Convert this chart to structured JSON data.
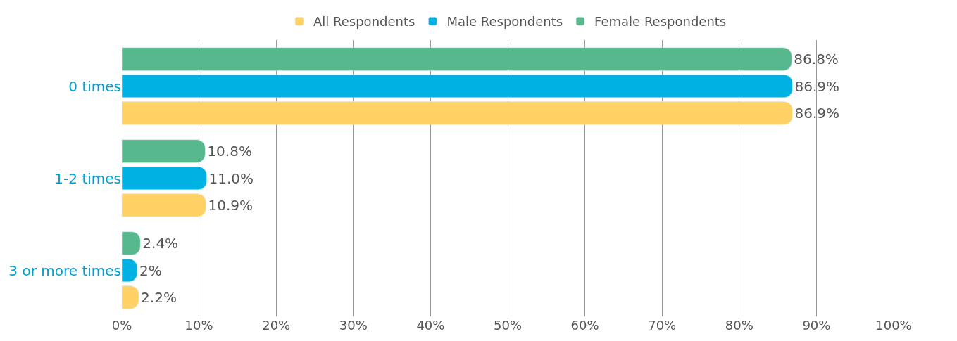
{
  "chart_data": {
    "type": "bar",
    "orientation": "horizontal",
    "categories": [
      "0 times",
      "1-2 times",
      "3 or more times"
    ],
    "series": [
      {
        "name": "All Respondents",
        "color": "#ffd265",
        "values": [
          86.9,
          10.9,
          2.2
        ],
        "value_labels": [
          "86.9%",
          "10.9%",
          "2.2%"
        ]
      },
      {
        "name": "Male Respondents",
        "color": "#00b2e3",
        "values": [
          86.9,
          11.0,
          2
        ],
        "value_labels": [
          "86.9%",
          "11.0%",
          "2%"
        ]
      },
      {
        "name": "Female Respondents",
        "color": "#56b88c",
        "values": [
          86.8,
          10.8,
          2.4
        ],
        "value_labels": [
          "86.8%",
          "10.8%",
          "2.4%"
        ]
      }
    ],
    "xlim": [
      0,
      100
    ],
    "xticks": [
      {
        "value": 0,
        "label": "0%"
      },
      {
        "value": 10,
        "label": "10%"
      },
      {
        "value": 20,
        "label": "20%"
      },
      {
        "value": 30,
        "label": "30%"
      },
      {
        "value": 40,
        "label": "40%"
      },
      {
        "value": 50,
        "label": "50%"
      },
      {
        "value": 60,
        "label": "60%"
      },
      {
        "value": 70,
        "label": "70%"
      },
      {
        "value": 80,
        "label": "80%"
      },
      {
        "value": 90,
        "label": "90%"
      },
      {
        "value": 100,
        "label": "100%"
      }
    ],
    "grid": "x",
    "legend": "top"
  }
}
